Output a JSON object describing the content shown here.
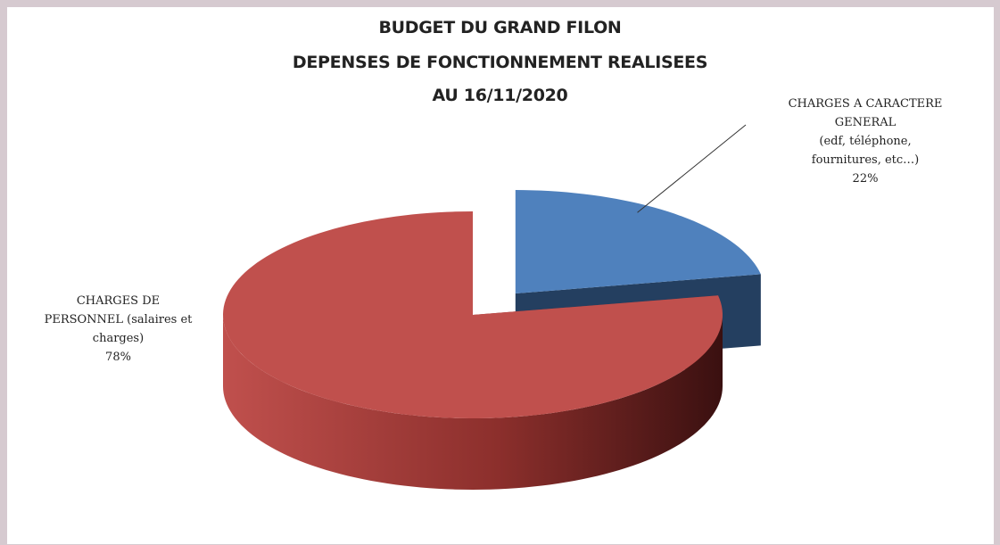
{
  "chart_data": {
    "type": "pie",
    "style": "3d-exploded",
    "title_lines": [
      "BUDGET DU GRAND FILON",
      "DEPENSES DE FONCTIONNEMENT REALISEES",
      "AU 16/11/2020"
    ],
    "slices": [
      {
        "label_lines": [
          "CHARGES A CARACTERE",
          "GENERAL",
          "(edf, téléphone,",
          "fournitures, etc…)"
        ],
        "value": 22,
        "value_label": "22%",
        "color": "#4f81bd",
        "side_color": "#243f60"
      },
      {
        "label_lines": [
          "CHARGES DE",
          "PERSONNEL (salaires et",
          "charges)"
        ],
        "value": 78,
        "value_label": "78%",
        "color": "#c0504d",
        "side_color": "#8c2f2c"
      }
    ]
  },
  "page": {
    "background_color": "#d6cad0",
    "panel_color": "#ffffff"
  }
}
